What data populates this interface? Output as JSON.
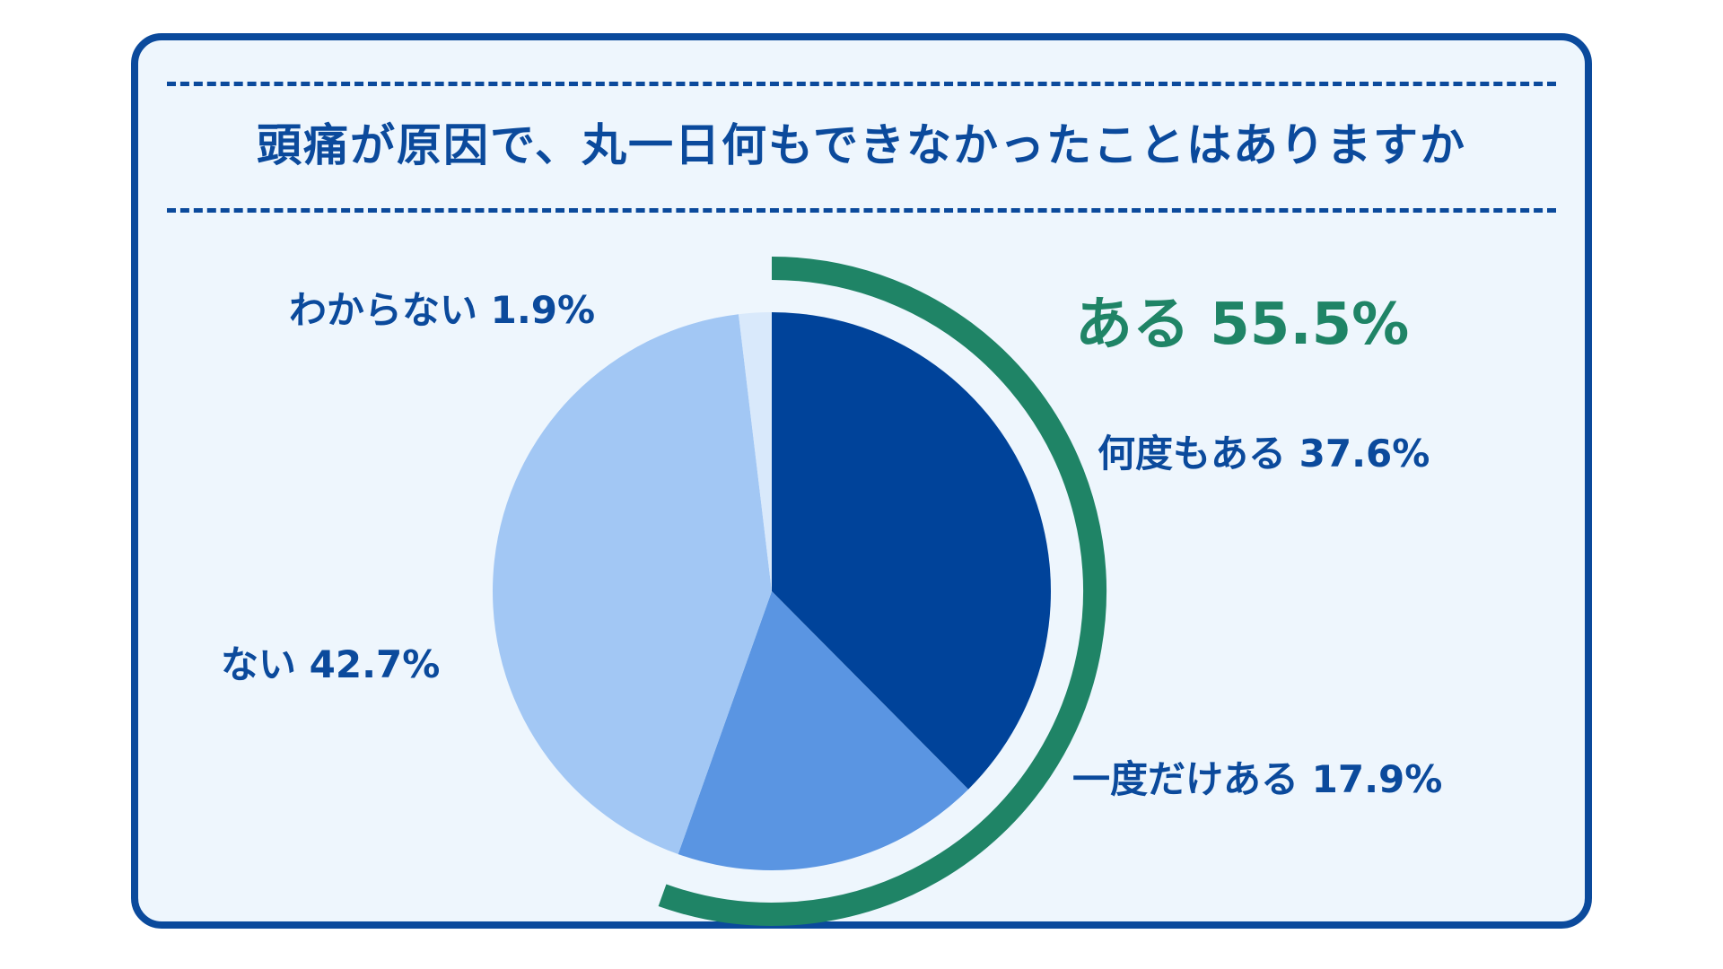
{
  "title": "頭痛が原因で、丸一日何もできなかったことはありますか",
  "colors": {
    "frame": "#0b4a9c",
    "background": "#eef6fd",
    "group_arc": "#1f8466",
    "label_text": "#0b4a9c",
    "group_text": "#1f8466"
  },
  "chart_data": {
    "type": "pie",
    "slices": [
      {
        "label": "何度もある 37.6%",
        "value": 37.6,
        "color": "#00439a"
      },
      {
        "label": "一度だけある 17.9%",
        "value": 17.9,
        "color": "#5a95e2"
      },
      {
        "label": "ない 42.7%",
        "value": 42.7,
        "color": "#a2c7f4"
      },
      {
        "label": "わからない 1.9%",
        "value": 1.9,
        "color": "#d9e9fb"
      }
    ],
    "group": {
      "label": "ある 55.5%",
      "value": 55.5,
      "includes": [
        "何度もある",
        "一度だけある"
      ]
    }
  }
}
